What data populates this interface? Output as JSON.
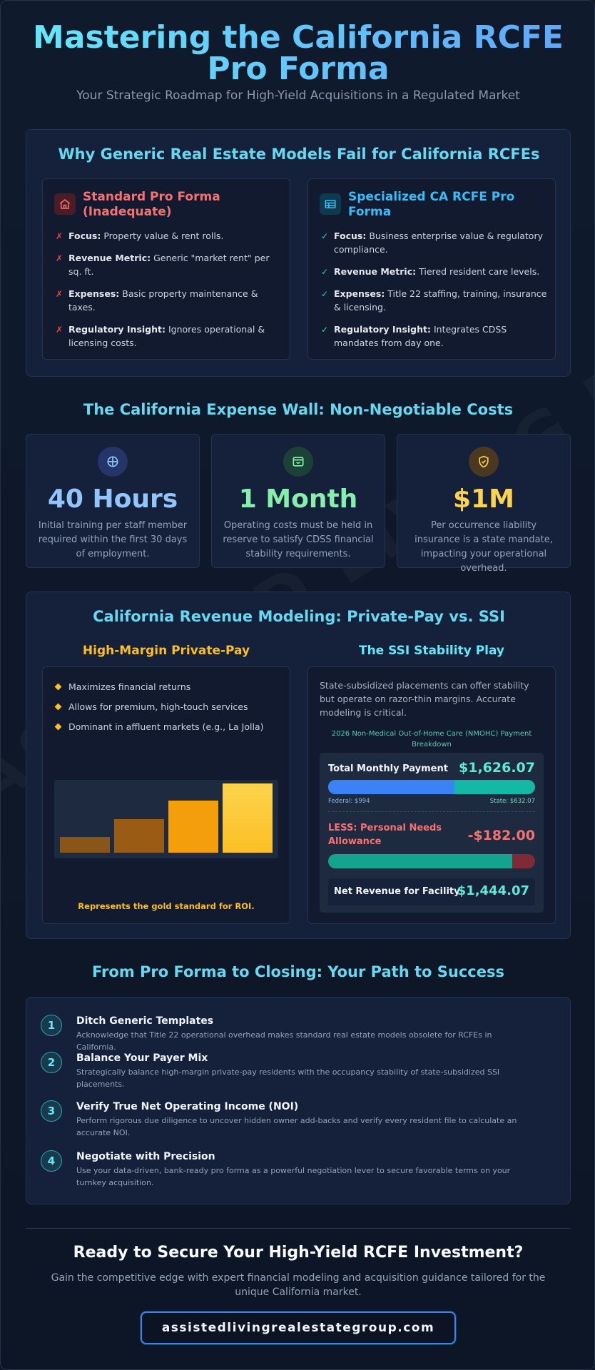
{
  "header": {
    "title": "Mastering the California RCFE Pro Forma",
    "subtitle": "Your Strategic Roadmap for High-Yield Acquisitions in a Regulated Market"
  },
  "watermark": "ASSISTED LIVING REAL ESTATE GROUP",
  "comparison": {
    "title": "Why Generic Real Estate Models Fail for California RCFEs",
    "standard": {
      "title": "Standard Pro Forma (Inadequate)",
      "icon": "home-icon",
      "color": "#f87171",
      "items": [
        {
          "label": "Focus:",
          "text": "Property value & rent rolls."
        },
        {
          "label": "Revenue Metric:",
          "text": "Generic \"market rent\" per sq. ft."
        },
        {
          "label": "Expenses:",
          "text": "Basic property maintenance & taxes."
        },
        {
          "label": "Regulatory Insight:",
          "text": "Ignores operational & licensing costs."
        }
      ]
    },
    "specialized": {
      "title": "Specialized CA RCFE Pro Forma",
      "icon": "table-icon",
      "color": "#38bdf8",
      "items": [
        {
          "label": "Focus:",
          "text": "Business enterprise value & regulatory compliance."
        },
        {
          "label": "Revenue Metric:",
          "text": "Tiered resident care levels."
        },
        {
          "label": "Expenses:",
          "text": "Title 22 staffing, training, insurance & licensing."
        },
        {
          "label": "Regulatory Insight:",
          "text": "Integrates CDSS mandates from day one."
        }
      ]
    }
  },
  "expense_wall": {
    "title": "The California Expense Wall: Non-Negotiable Costs",
    "cards": [
      {
        "value": "40 Hours",
        "desc": "Initial training per staff member required within the first 30 days of employment.",
        "icon": "globe-icon",
        "color": "#93c5fd"
      },
      {
        "value": "1 Month",
        "desc": "Operating costs must be held in reserve to satisfy CDSS financial stability requirements.",
        "icon": "wallet-icon",
        "color": "#86efac"
      },
      {
        "value": "$1M",
        "desc": "Per occurrence liability insurance is a state mandate, impacting your operational overhead.",
        "icon": "shield-check-icon",
        "color": "#fcd34d"
      }
    ]
  },
  "revenue": {
    "title": "California Revenue Modeling: Private-Pay vs. SSI",
    "private_pay": {
      "title": "High-Margin Private-Pay",
      "items": [
        "Maximizes financial returns",
        "Allows for premium, high-touch services",
        "Dominant in affluent markets (e.g., La Jolla)"
      ],
      "bars": [
        0.22,
        0.46,
        0.72,
        0.95
      ],
      "caption": "Represents the gold standard for ROI."
    },
    "ssi": {
      "title": "The SSI Stability Play",
      "intro": "State-subsidized placements can offer stability but operate on razor-thin margins. Accurate modeling is critical.",
      "caption": "2026 Non-Medical Out-of-Home Care (NMOHC) Payment Breakdown",
      "total_label": "Total Monthly Payment",
      "total_value": "$1,626.07",
      "federal_label": "Federal: $994",
      "state_label": "State: $632.07",
      "federal_amount": 994,
      "state_amount": 632.07,
      "pna_label": "LESS: Personal Needs Allowance",
      "pna_value": "-$182.00",
      "pna_amount": 182,
      "net_label": "Net Revenue for Facility",
      "net_value": "$1,444.07"
    }
  },
  "path": {
    "title": "From Pro Forma to Closing: Your Path to Success",
    "steps": [
      {
        "num": "1",
        "title": "Ditch Generic Templates",
        "desc": "Acknowledge that Title 22 operational overhead makes standard real estate models obsolete for RCFEs in California."
      },
      {
        "num": "2",
        "title": "Balance Your Payer Mix",
        "desc": "Strategically balance high-margin private-pay residents with the occupancy stability of state-subsidized SSI placements."
      },
      {
        "num": "3",
        "title": "Verify True Net Operating Income (NOI)",
        "desc": "Perform rigorous due diligence to uncover hidden owner add-backs and verify every resident file to calculate an accurate NOI."
      },
      {
        "num": "4",
        "title": "Negotiate with Precision",
        "desc": "Use your data-driven, bank-ready pro forma as a powerful negotiation lever to secure favorable terms on your turnkey acquisition."
      }
    ]
  },
  "cta": {
    "title": "Ready to Secure Your High-Yield RCFE Investment?",
    "desc": "Gain the competitive edge with expert financial modeling and acquisition guidance tailored for the unique California market.",
    "button": "assistedlivingrealestategroup.com"
  }
}
